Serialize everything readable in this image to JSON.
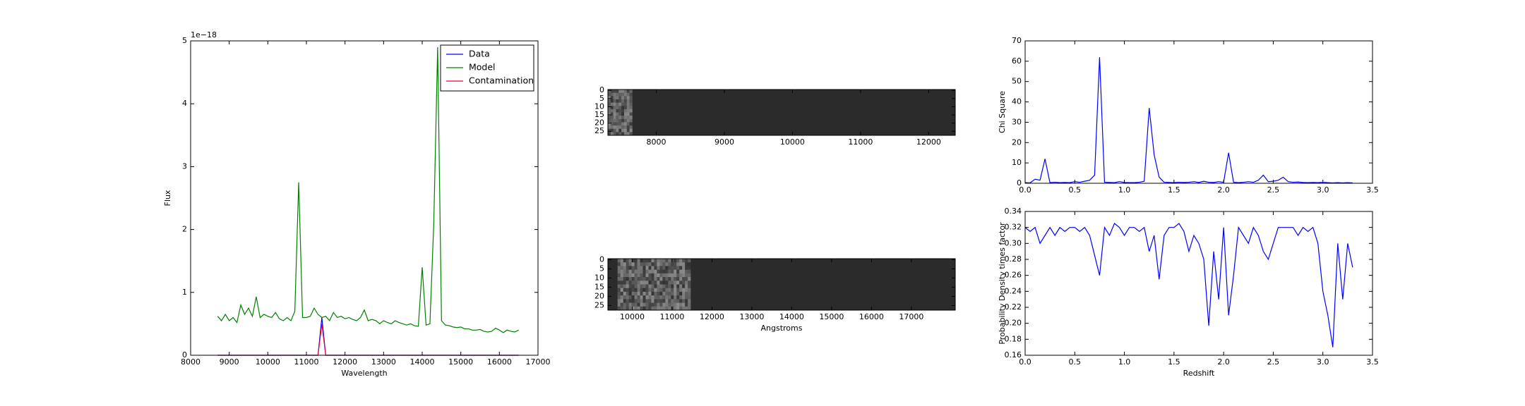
{
  "chart_data": [
    {
      "type": "line",
      "xlabel": "Wavelength",
      "ylabel": "Flux",
      "y_offset_label": "1e−18",
      "xlim": [
        8000,
        17000
      ],
      "ylim": [
        0,
        5
      ],
      "xticks": [
        8000,
        9000,
        10000,
        11000,
        12000,
        13000,
        14000,
        15000,
        16000,
        17000
      ],
      "yticks": [
        0,
        1,
        2,
        3,
        4,
        5
      ],
      "legend": "upper right",
      "x": [
        8700,
        8800,
        8900,
        9000,
        9100,
        9200,
        9300,
        9400,
        9500,
        9600,
        9700,
        9800,
        9900,
        10000,
        10100,
        10200,
        10300,
        10400,
        10500,
        10600,
        10700,
        10800,
        10900,
        11000,
        11100,
        11200,
        11300,
        11400,
        11500,
        11600,
        11700,
        11800,
        11900,
        12000,
        12100,
        12200,
        12300,
        12400,
        12500,
        12600,
        12700,
        12800,
        12900,
        13000,
        13100,
        13200,
        13300,
        13400,
        13500,
        13600,
        13700,
        13800,
        13900,
        14000,
        14100,
        14200,
        14300,
        14400,
        14500,
        14600,
        14700,
        14800,
        14900,
        15000,
        15100,
        15200,
        15300,
        15400,
        15500,
        15600,
        15700,
        15800,
        15900,
        16000,
        16100,
        16200,
        16300,
        16400,
        16500
      ],
      "series": [
        {
          "name": "Data",
          "color": "#0000ff",
          "values": [
            0,
            0,
            0,
            0,
            0,
            0,
            0,
            0,
            0,
            0,
            0,
            0,
            0,
            0,
            0,
            0,
            0,
            0,
            0,
            0,
            0,
            0,
            0,
            0,
            0,
            0,
            0,
            0.6,
            0,
            0,
            0,
            0,
            0,
            0,
            0,
            0,
            0,
            0,
            0,
            0,
            0,
            0,
            0,
            0,
            0,
            0,
            0,
            0,
            0,
            0,
            0,
            0,
            0,
            0,
            0,
            0,
            0,
            0,
            0,
            0,
            0,
            0,
            0,
            0,
            0,
            0,
            0,
            0,
            0,
            0,
            0,
            0,
            0,
            0,
            0,
            0,
            0,
            0,
            0
          ]
        },
        {
          "name": "Model",
          "color": "#008000",
          "values": [
            0.62,
            0.55,
            0.65,
            0.55,
            0.6,
            0.52,
            0.8,
            0.65,
            0.75,
            0.62,
            0.93,
            0.6,
            0.65,
            0.62,
            0.6,
            0.68,
            0.58,
            0.55,
            0.6,
            0.55,
            0.7,
            2.75,
            0.6,
            0.6,
            0.62,
            0.75,
            0.65,
            0.6,
            0.62,
            0.55,
            0.68,
            0.6,
            0.62,
            0.58,
            0.6,
            0.57,
            0.55,
            0.6,
            0.72,
            0.55,
            0.57,
            0.55,
            0.5,
            0.55,
            0.52,
            0.5,
            0.55,
            0.52,
            0.5,
            0.48,
            0.5,
            0.47,
            0.46,
            1.4,
            0.48,
            0.5,
            2.1,
            4.9,
            0.55,
            0.48,
            0.47,
            0.45,
            0.44,
            0.45,
            0.42,
            0.42,
            0.4,
            0.4,
            0.41,
            0.38,
            0.37,
            0.38,
            0.43,
            0.4,
            0.36,
            0.4,
            0.38,
            0.37,
            0.4
          ]
        },
        {
          "name": "Contamination",
          "color": "#e8003c",
          "values": [
            0,
            0,
            0,
            0,
            0,
            0,
            0,
            0,
            0,
            0,
            0,
            0,
            0,
            0,
            0,
            0,
            0,
            0,
            0,
            0,
            0,
            0,
            0,
            0,
            0,
            0,
            0,
            0.5,
            0,
            0,
            0,
            0,
            0,
            0,
            0,
            0,
            0,
            0,
            0,
            0,
            0,
            0,
            0,
            0,
            0,
            0,
            0,
            0,
            0,
            0,
            0,
            0,
            0,
            0,
            0,
            0,
            0,
            0,
            0,
            0,
            0,
            0,
            0,
            0,
            0,
            0,
            0,
            0,
            0,
            0,
            0,
            0,
            0,
            0,
            0,
            0,
            0,
            0,
            0
          ]
        }
      ]
    },
    {
      "type": "image",
      "xlim": [
        7290,
        12390
      ],
      "ylim": [
        27.5,
        -0.5
      ],
      "stamp_x": [
        7290,
        7647
      ],
      "xticks": [
        8000,
        9000,
        10000,
        11000,
        12000
      ],
      "yticks": [
        0,
        5,
        10,
        15,
        20,
        25
      ]
    },
    {
      "type": "image",
      "xlabel": "Angstroms",
      "xlim": [
        9390,
        18100
      ],
      "ylim": [
        27.5,
        -0.5
      ],
      "stamp_x": [
        9634,
        11463
      ],
      "xticks": [
        10000,
        11000,
        12000,
        13000,
        14000,
        15000,
        16000,
        17000
      ],
      "yticks": [
        0,
        5,
        10,
        15,
        20,
        25
      ]
    },
    {
      "type": "line",
      "ylabel": "Chi Square",
      "xlim": [
        0,
        3.5
      ],
      "ylim": [
        0,
        70
      ],
      "xticks": [
        {
          "value": 0,
          "label": "0.0"
        },
        0.5,
        {
          "value": 1,
          "label": "1.0"
        },
        1.5,
        {
          "value": 2,
          "label": "2.0"
        },
        2.5,
        {
          "value": 3,
          "label": "3.0"
        },
        3.5
      ],
      "yticks": [
        0,
        10,
        20,
        30,
        40,
        50,
        60,
        70
      ],
      "x": [
        0,
        0.05,
        0.1,
        0.15,
        0.2,
        0.25,
        0.3,
        0.35,
        0.4,
        0.45,
        0.5,
        0.55,
        0.6,
        0.65,
        0.7,
        0.75,
        0.8,
        0.85,
        0.9,
        0.95,
        1,
        1.05,
        1.1,
        1.15,
        1.2,
        1.25,
        1.3,
        1.35,
        1.4,
        1.45,
        1.5,
        1.55,
        1.6,
        1.65,
        1.7,
        1.75,
        1.8,
        1.85,
        1.9,
        1.95,
        2,
        2.05,
        2.1,
        2.15,
        2.2,
        2.25,
        2.3,
        2.35,
        2.4,
        2.45,
        2.5,
        2.55,
        2.6,
        2.65,
        2.7,
        2.75,
        2.8,
        2.85,
        2.9,
        2.95,
        3,
        3.05,
        3.1,
        3.15,
        3.2,
        3.25,
        3.3
      ],
      "series": [
        {
          "color": "#0000ff",
          "values": [
            0.3,
            0.2,
            2,
            1.5,
            12,
            0.3,
            0.5,
            0.3,
            0.4,
            0.3,
            0.8,
            0.5,
            1,
            1.5,
            4,
            62,
            0.5,
            0.4,
            0.3,
            0.8,
            0.4,
            0.3,
            0.3,
            0.5,
            1,
            37,
            14,
            3,
            0.5,
            0.4,
            0.3,
            0.5,
            0.4,
            0.5,
            0.8,
            0.4,
            1,
            0.5,
            0.4,
            0.8,
            0.5,
            15,
            0.5,
            0.3,
            0.5,
            0.8,
            0.5,
            1.5,
            4,
            0.8,
            1,
            1.5,
            3,
            0.8,
            0.5,
            0.6,
            0.4,
            0.3,
            0.4,
            0.3,
            0.5,
            0.3,
            0.2,
            0.3,
            0.2,
            0.3,
            0.2
          ]
        }
      ]
    },
    {
      "type": "line",
      "xlabel": "Redshift",
      "ylabel": "Probability Density times factor",
      "xlim": [
        0,
        3.5
      ],
      "ylim": [
        0.16,
        0.34
      ],
      "xticks": [
        {
          "value": 0,
          "label": "0.0"
        },
        0.5,
        {
          "value": 1,
          "label": "1.0"
        },
        1.5,
        {
          "value": 2,
          "label": "2.0"
        },
        2.5,
        {
          "value": 3,
          "label": "3.0"
        },
        3.5
      ],
      "yticks": [
        0.16,
        0.18,
        {
          "value": 0.2,
          "label": "0.20"
        },
        0.22,
        0.24,
        0.26,
        0.28,
        {
          "value": 0.3,
          "label": "0.30"
        },
        0.32,
        0.34
      ],
      "x": [
        0,
        0.05,
        0.1,
        0.15,
        0.2,
        0.25,
        0.3,
        0.35,
        0.4,
        0.45,
        0.5,
        0.55,
        0.6,
        0.65,
        0.7,
        0.75,
        0.8,
        0.85,
        0.9,
        0.95,
        1,
        1.05,
        1.1,
        1.15,
        1.2,
        1.25,
        1.3,
        1.35,
        1.4,
        1.45,
        1.5,
        1.55,
        1.6,
        1.65,
        1.7,
        1.75,
        1.8,
        1.85,
        1.9,
        1.95,
        2,
        2.05,
        2.1,
        2.15,
        2.2,
        2.25,
        2.3,
        2.35,
        2.4,
        2.45,
        2.5,
        2.55,
        2.6,
        2.65,
        2.7,
        2.75,
        2.8,
        2.85,
        2.9,
        2.95,
        3,
        3.05,
        3.1,
        3.15,
        3.2,
        3.25,
        3.3
      ],
      "series": [
        {
          "color": "#0000ff",
          "values": [
            0.32,
            0.315,
            0.32,
            0.3,
            0.31,
            0.32,
            0.31,
            0.32,
            0.315,
            0.32,
            0.32,
            0.315,
            0.32,
            0.31,
            0.285,
            0.26,
            0.32,
            0.31,
            0.325,
            0.32,
            0.31,
            0.32,
            0.32,
            0.315,
            0.32,
            0.29,
            0.31,
            0.255,
            0.31,
            0.32,
            0.32,
            0.325,
            0.315,
            0.29,
            0.31,
            0.3,
            0.28,
            0.197,
            0.29,
            0.23,
            0.32,
            0.21,
            0.26,
            0.32,
            0.31,
            0.3,
            0.32,
            0.31,
            0.29,
            0.28,
            0.3,
            0.32,
            0.32,
            0.32,
            0.32,
            0.31,
            0.32,
            0.315,
            0.32,
            0.3,
            0.24,
            0.21,
            0.17,
            0.3,
            0.23,
            0.3,
            0.27
          ]
        }
      ]
    }
  ]
}
